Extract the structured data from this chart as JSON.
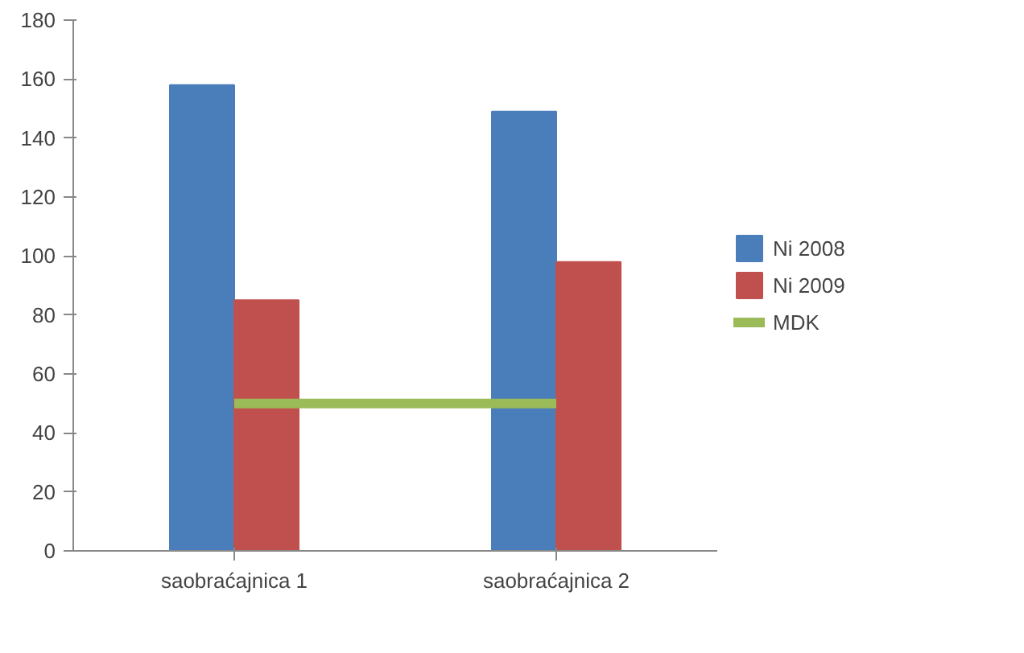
{
  "chart_data": {
    "type": "bar",
    "categories": [
      "saobraćajnica 1",
      "saobraćajnica 2"
    ],
    "series": [
      {
        "name": "Ni 2008",
        "color": "#4a7ebb",
        "values": [
          158,
          149
        ]
      },
      {
        "name": "Ni 2009",
        "color": "#c0504d",
        "values": [
          85,
          98
        ]
      },
      {
        "name": "MDK",
        "color": "#9bbb59",
        "type": "line",
        "values": [
          50,
          50
        ]
      }
    ],
    "ylim": [
      0,
      180
    ],
    "yticks": [
      0,
      20,
      40,
      60,
      80,
      100,
      120,
      140,
      160,
      180
    ],
    "grid": false,
    "legend": "right"
  }
}
